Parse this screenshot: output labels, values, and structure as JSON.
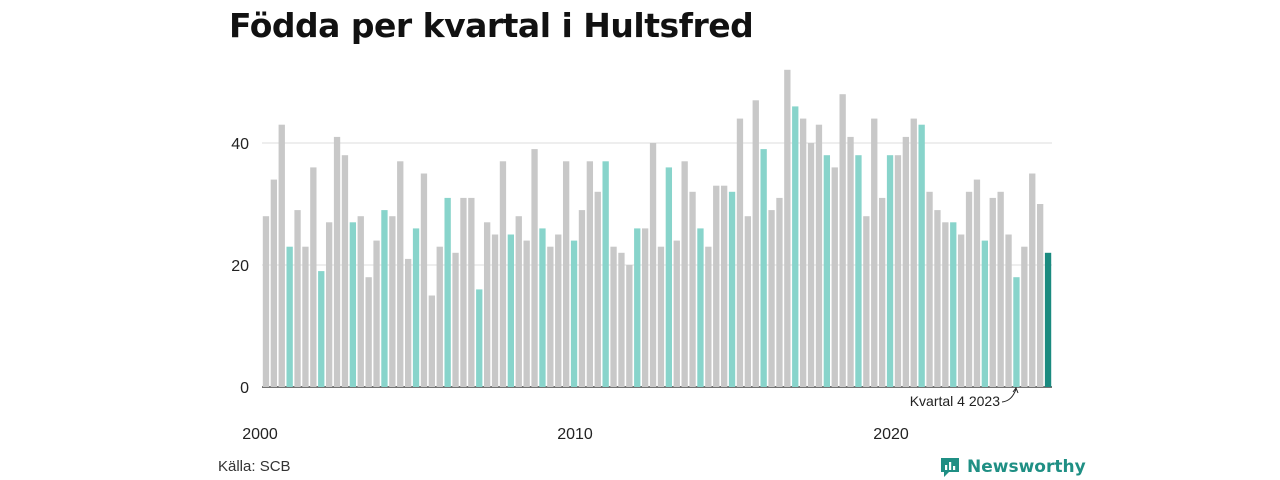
{
  "title": "Födda per kvartal i Hultsfred",
  "source": "Källa: SCB",
  "brand": "Newsworthy",
  "colors": {
    "other_quarter": "#c8c8c8",
    "quarter_4": "#88d4cb",
    "highlight": "#1a8a7f",
    "gridline": "#dddddd",
    "brand": "#1f8f84"
  },
  "chart_data": {
    "type": "bar",
    "title": "Födda per kvartal i Hultsfred",
    "xlabel": "",
    "ylabel": "",
    "ylim": [
      0,
      55
    ],
    "y_ticks": [
      0,
      20,
      40
    ],
    "x_tick_labels": [
      "2000",
      "2010",
      "2020"
    ],
    "grid": true,
    "annotation": {
      "text": "Kvartal 4 2023",
      "target": "2023 Q4"
    },
    "series": [
      {
        "values": [
          28,
          34,
          43,
          23,
          29,
          23,
          36,
          19,
          27,
          41,
          38,
          27,
          28,
          18,
          24,
          29,
          28,
          37,
          21,
          26,
          35,
          15,
          23,
          31,
          22,
          31,
          31,
          16,
          27,
          25,
          37,
          25,
          28,
          24,
          39,
          26,
          23,
          25,
          37,
          24,
          29,
          37,
          32,
          37,
          23,
          22,
          20,
          26,
          26,
          40,
          23,
          36,
          24,
          37,
          32,
          26,
          23,
          33,
          33,
          32,
          44,
          28,
          47,
          39,
          29,
          31,
          52,
          46,
          44,
          40,
          43,
          38,
          36,
          48,
          41,
          38,
          28,
          44,
          31,
          38,
          38,
          41,
          44,
          43,
          32,
          29,
          27,
          27,
          25,
          32,
          34,
          24,
          31,
          32,
          25,
          18,
          23,
          35,
          30,
          22
        ]
      }
    ]
  }
}
